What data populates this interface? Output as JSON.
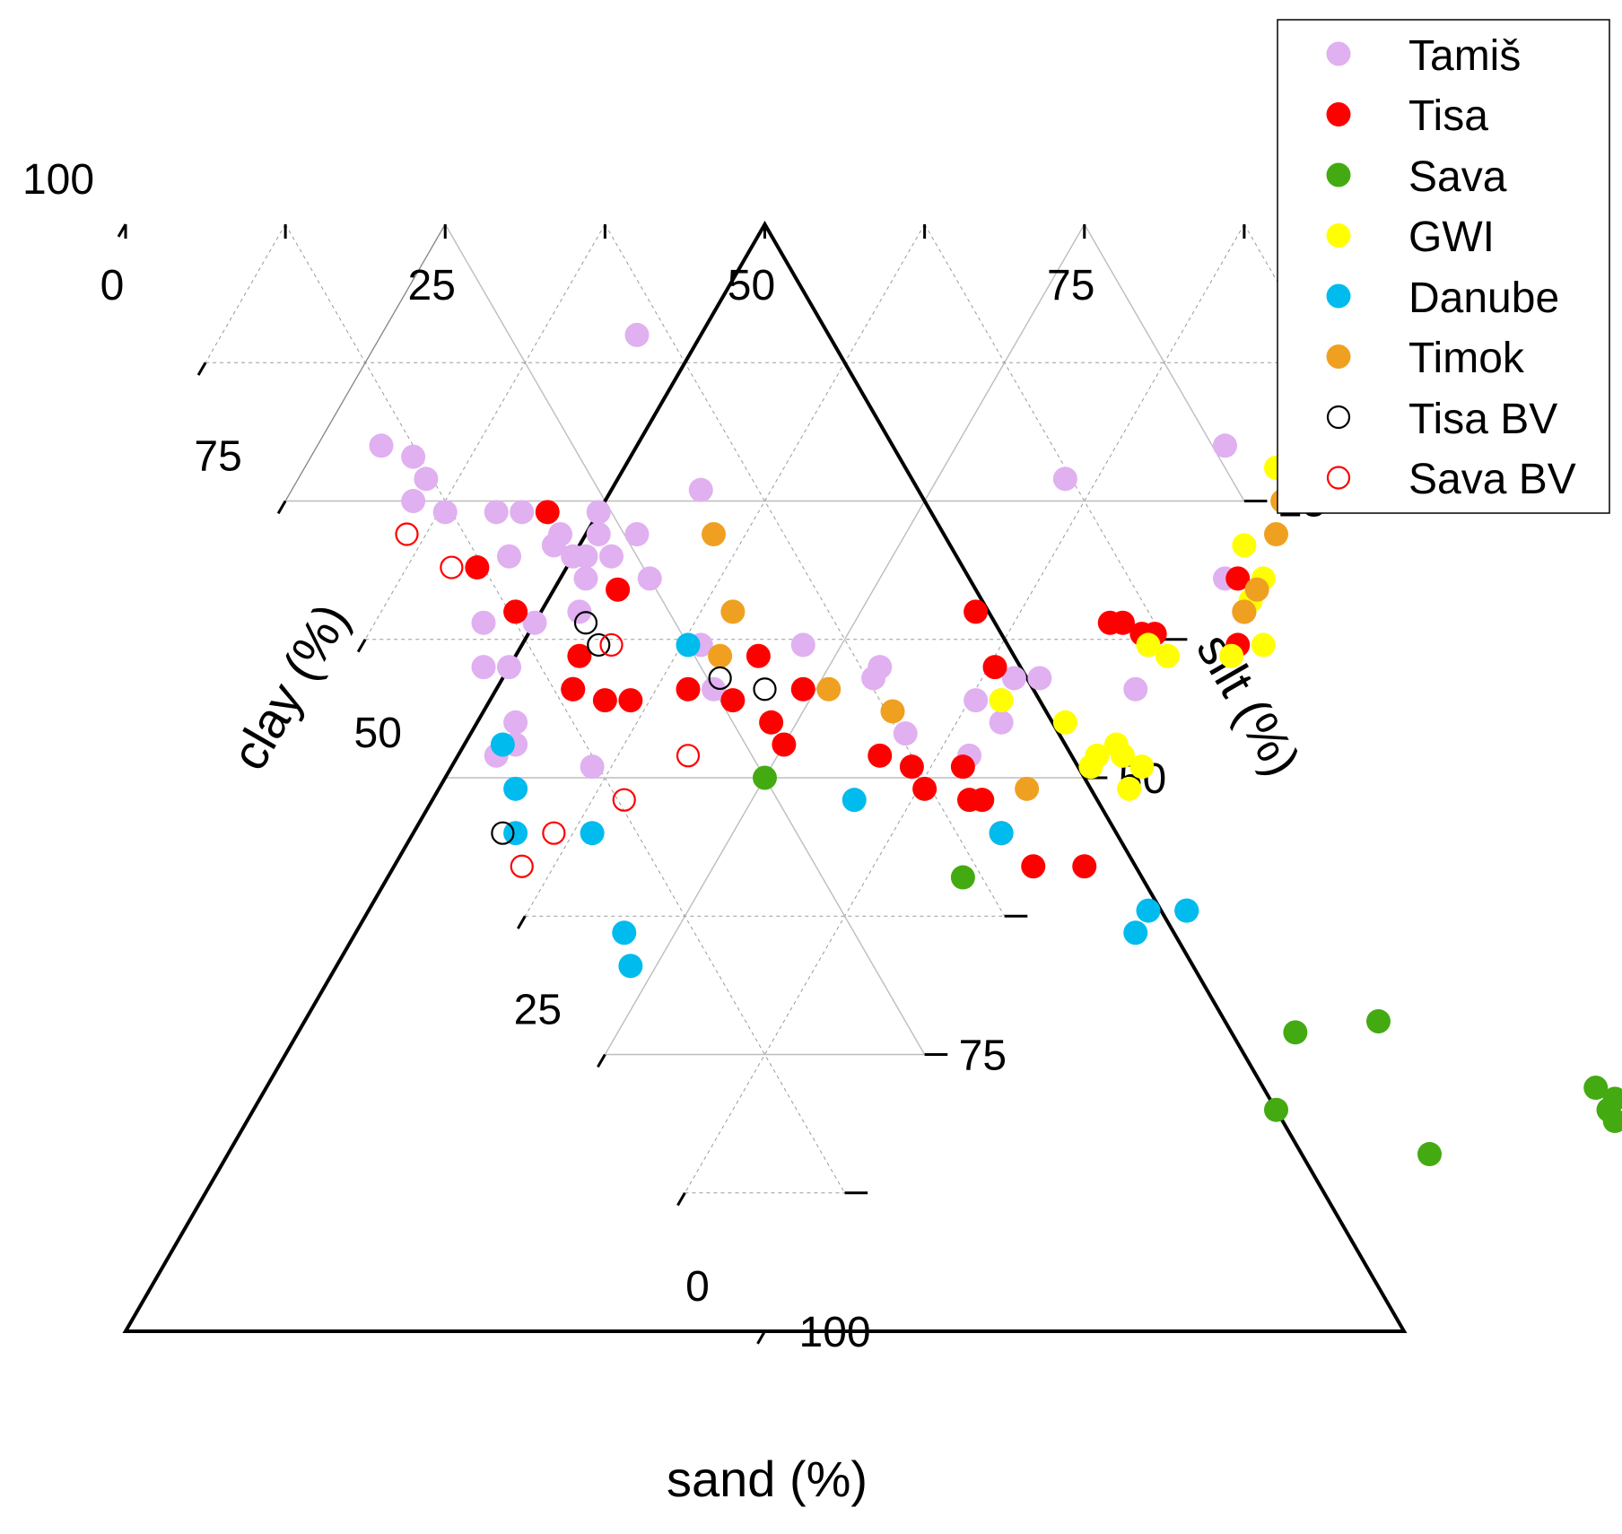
{
  "chart_data": {
    "type": "scatter",
    "subtype": "ternary",
    "axes": {
      "bottom": {
        "label": "sand (%)",
        "ticks": [
          "0",
          "25",
          "50",
          "75",
          "100"
        ]
      },
      "left": {
        "label": "clay (%)",
        "ticks": [
          "0",
          "25",
          "50",
          "75",
          "100"
        ]
      },
      "right": {
        "label": "silt (%)",
        "ticks": [
          "0",
          "25",
          "50",
          "75",
          "100"
        ]
      }
    },
    "grid": true,
    "legend": {
      "position": "top-right"
    },
    "series": [
      {
        "name": "Tamiš",
        "marker": "filled",
        "color": "#e0b0f0",
        "points": [
          [
            10,
            20
          ],
          [
            12,
            21
          ],
          [
            12,
            23
          ],
          [
            10,
            25
          ],
          [
            12,
            26
          ],
          [
            16,
            26
          ],
          [
            18,
            26
          ],
          [
            15,
            30
          ],
          [
            21,
            30
          ],
          [
            20,
            32
          ],
          [
            20,
            28
          ],
          [
            19,
            29
          ],
          [
            20,
            30
          ],
          [
            18,
            35
          ],
          [
            26,
            28
          ],
          [
            23,
            28
          ],
          [
            26,
            38
          ],
          [
            23,
            30
          ],
          [
            25,
            32
          ],
          [
            22,
            33
          ],
          [
            10,
            36
          ],
          [
            10,
            40
          ],
          [
            14,
            36
          ],
          [
            8,
            40
          ],
          [
            8,
            45
          ],
          [
            7,
            47
          ],
          [
            5,
            48
          ],
          [
            12,
            49
          ],
          [
            25,
            42
          ],
          [
            34,
            38
          ],
          [
            38,
            41
          ],
          [
            39,
            40
          ],
          [
            38,
            46
          ],
          [
            42,
            48
          ],
          [
            47,
            43
          ],
          [
            45,
            43
          ],
          [
            46,
            45
          ],
          [
            49,
            41
          ],
          [
            51,
            41
          ],
          [
            58,
            42
          ],
          [
            61,
            38
          ],
          [
            62,
            23
          ],
          [
            33,
            24
          ],
          [
            24,
            26
          ],
          [
            70,
            32
          ],
          [
            76,
            20
          ],
          [
            89,
            17
          ],
          [
            83,
            16
          ],
          [
            85,
            17
          ],
          [
            88,
            14
          ],
          [
            93,
            10
          ],
          [
            97,
            3
          ],
          [
            96,
            4
          ],
          [
            98,
            3
          ],
          [
            95,
            5
          ],
          [
            98,
            2
          ],
          [
            97,
            5
          ],
          [
            35,
            10
          ]
        ]
      },
      {
        "name": "Tisa",
        "marker": "filled",
        "color": "#ff0000",
        "points": [
          [
            20,
            26
          ],
          [
            12,
            31
          ],
          [
            22,
            33
          ],
          [
            16,
            39
          ],
          [
            13,
            35
          ],
          [
            14,
            42
          ],
          [
            16,
            43
          ],
          [
            14,
            42
          ],
          [
            18,
            43
          ],
          [
            23,
            42
          ],
          [
            26,
            43
          ],
          [
            28,
            45
          ],
          [
            32,
            42
          ],
          [
            30,
            39
          ],
          [
            28,
            47
          ],
          [
            35,
            48
          ],
          [
            37,
            49
          ],
          [
            37,
            51
          ],
          [
            41,
            49
          ],
          [
            41,
            52
          ],
          [
            40,
            52
          ],
          [
            41,
            55
          ],
          [
            42,
            58
          ],
          [
            46,
            58
          ],
          [
            48,
            40
          ],
          [
            49,
            35
          ],
          [
            59,
            36
          ],
          [
            60,
            36
          ],
          [
            61,
            37
          ],
          [
            62,
            37
          ],
          [
            68,
            38
          ],
          [
            70,
            35
          ],
          [
            71,
            32
          ]
        ]
      },
      {
        "name": "Sava",
        "marker": "filled",
        "color": "#44aa11",
        "points": [
          [
            25,
            50
          ],
          [
            36,
            59
          ],
          [
            50,
            80
          ],
          [
            55,
            73
          ],
          [
            60,
            84
          ],
          [
            62,
            72
          ],
          [
            76,
            78
          ],
          [
            76,
            80
          ],
          [
            76,
            81
          ],
          [
            77,
            79
          ],
          [
            80,
            78
          ],
          [
            79,
            82
          ],
          [
            78,
            81
          ]
        ]
      },
      {
        "name": "GWI",
        "marker": "filled",
        "color": "#ffff00",
        "points": [
          [
            47,
            43
          ],
          [
            51,
            45
          ],
          [
            52,
            48
          ],
          [
            51,
            49
          ],
          [
            54,
            47
          ],
          [
            53,
            51
          ],
          [
            54,
            48
          ],
          [
            55,
            49
          ],
          [
            61,
            38
          ],
          [
            62,
            39
          ],
          [
            67,
            39
          ],
          [
            70,
            38
          ],
          [
            71,
            34
          ],
          [
            73,
            32
          ],
          [
            73,
            29
          ],
          [
            79,
            22
          ],
          [
            81,
            21
          ],
          [
            82,
            21
          ],
          [
            83,
            19
          ],
          [
            83,
            21
          ],
          [
            90,
            8
          ],
          [
            97,
            3
          ],
          [
            98,
            2
          ],
          [
            100,
            1
          ]
        ]
      },
      {
        "name": "Danube",
        "marker": "filled",
        "color": "#00bbee",
        "points": [
          [
            6,
            47
          ],
          [
            5,
            51
          ],
          [
            3,
            55
          ],
          [
            9,
            55
          ],
          [
            7,
            64
          ],
          [
            6,
            67
          ],
          [
            25,
            38
          ],
          [
            31,
            52
          ],
          [
            41,
            55
          ],
          [
            49,
            62
          ],
          [
            52,
            62
          ],
          [
            52,
            62
          ],
          [
            47,
            64
          ]
        ]
      },
      {
        "name": "Timok",
        "marker": "filled",
        "color": "#f0a020",
        "points": [
          [
            32,
            28
          ],
          [
            30,
            35
          ],
          [
            27,
            39
          ],
          [
            34,
            42
          ],
          [
            38,
            44
          ],
          [
            45,
            51
          ],
          [
            70,
            35
          ],
          [
            72,
            33
          ],
          [
            76,
            28
          ],
          [
            78,
            25
          ],
          [
            82,
            20
          ],
          [
            86,
            16
          ]
        ]
      },
      {
        "name": "Tisa BV",
        "marker": "open",
        "color": "#000000",
        "points": [
          [
            18,
            36
          ],
          [
            18,
            38
          ],
          [
            26,
            41
          ],
          [
            29,
            42
          ],
          [
            2,
            55
          ]
        ]
      },
      {
        "name": "Sava BV",
        "marker": "open",
        "color": "#ff0000",
        "points": [
          [
            10,
            31
          ],
          [
            8,
            28
          ],
          [
            19,
            38
          ],
          [
            20,
            48
          ],
          [
            13,
            52
          ],
          [
            6,
            55
          ],
          [
            2,
            58
          ]
        ]
      }
    ]
  }
}
